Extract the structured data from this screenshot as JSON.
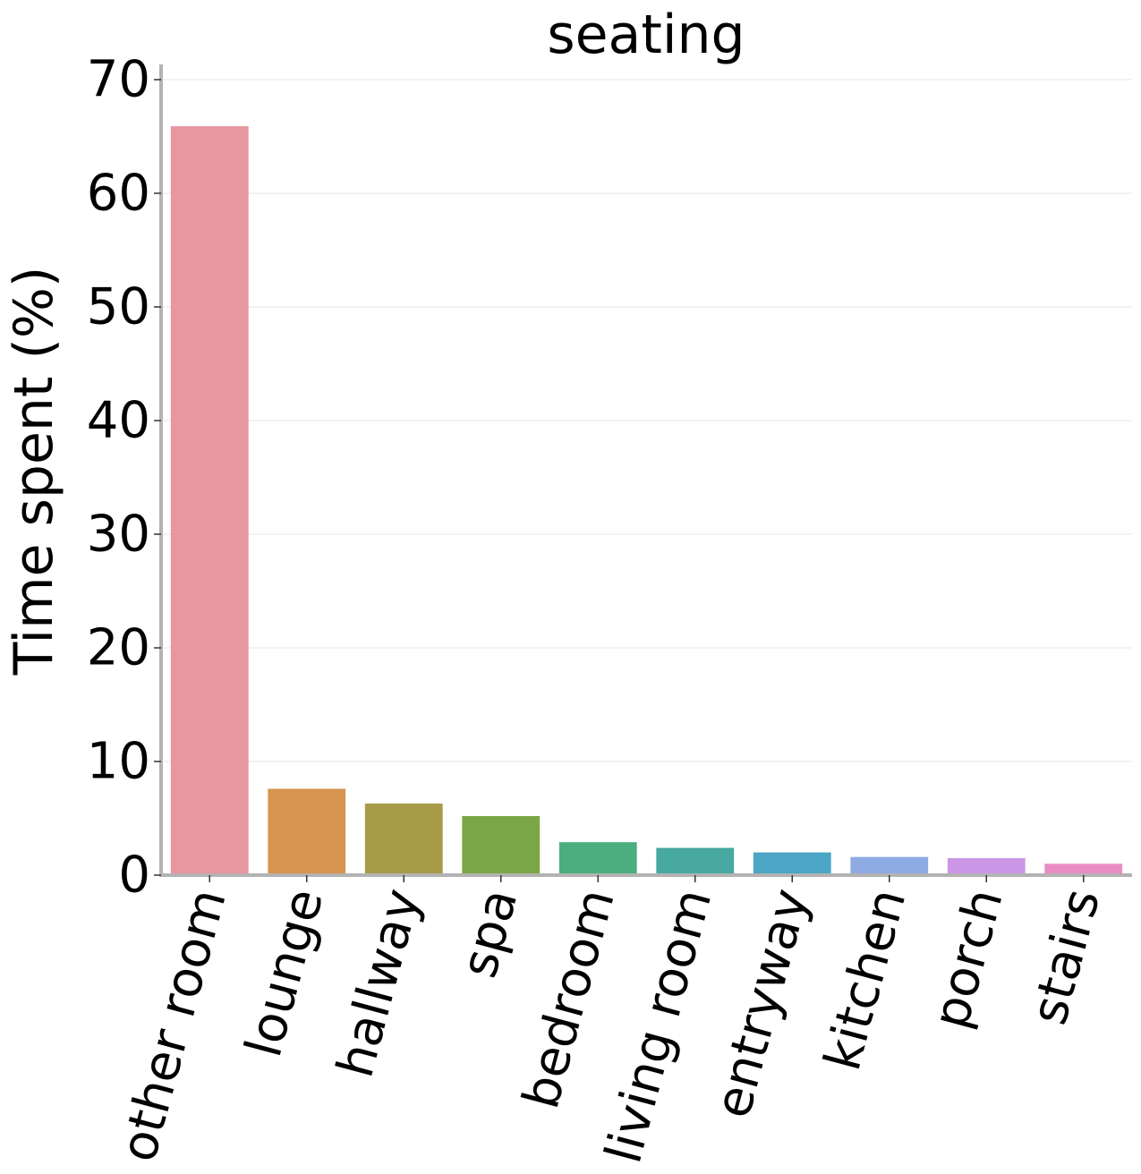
{
  "chart_data": {
    "type": "bar",
    "title": "seating",
    "xlabel": "",
    "ylabel": "Time spent (%)",
    "ylim": [
      0,
      71.5
    ],
    "yticks": [
      0,
      10,
      20,
      30,
      40,
      50,
      60,
      70
    ],
    "grid": "horizontal",
    "categories": [
      "other room",
      "lounge",
      "hallway",
      "spa",
      "bedroom",
      "living room",
      "entryway",
      "kitchen",
      "porch",
      "stairs"
    ],
    "values": [
      65.9,
      7.6,
      6.3,
      5.2,
      2.9,
      2.4,
      2.0,
      1.6,
      1.5,
      1.0
    ],
    "colors": [
      "#e8969f",
      "#d7944f",
      "#a89b48",
      "#7ba646",
      "#4aae7e",
      "#48a8a2",
      "#4aa6c4",
      "#8fabe4",
      "#cc96e6",
      "#e98cc6"
    ]
  }
}
